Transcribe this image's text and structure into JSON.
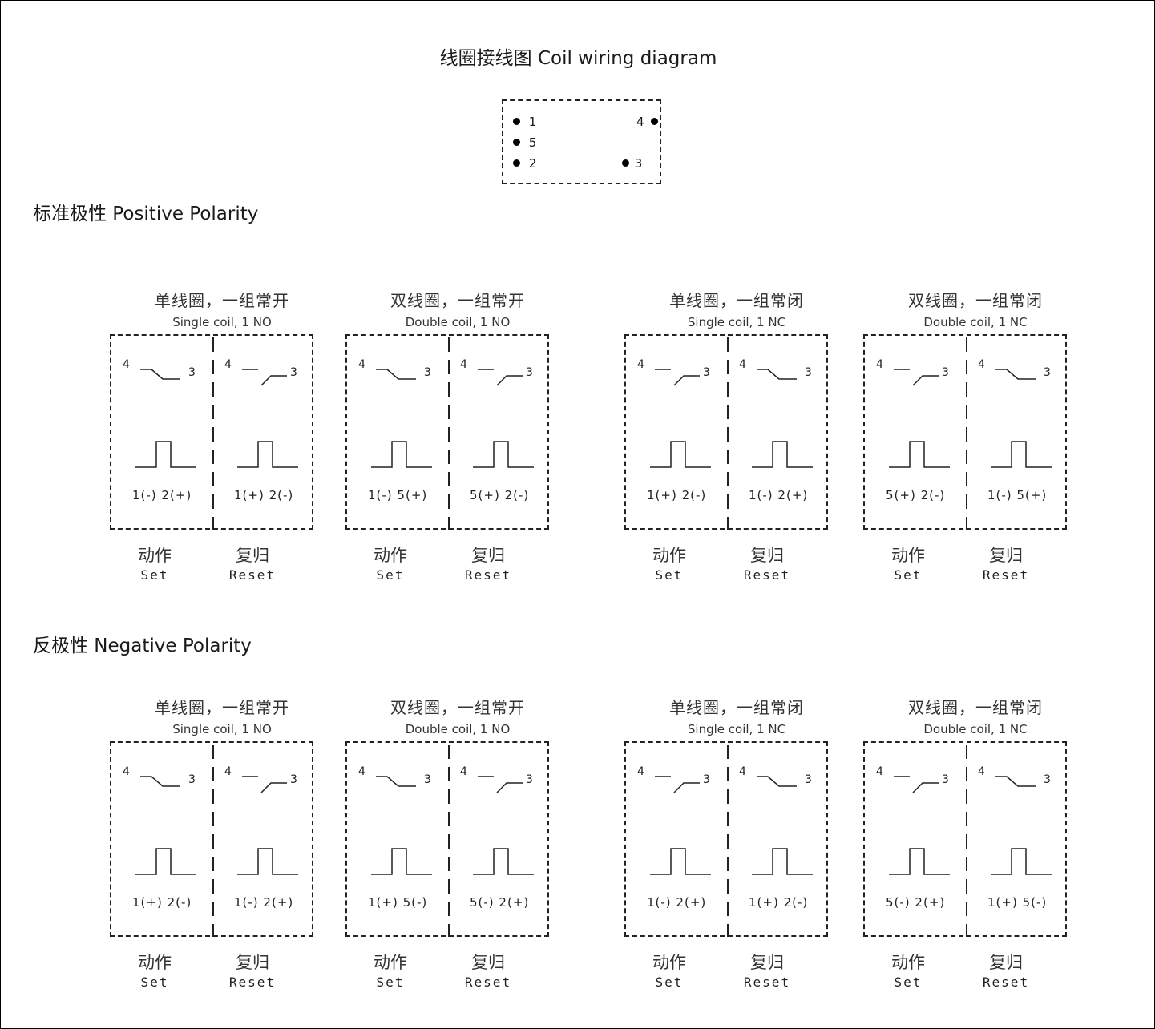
{
  "title": "线圈接线图 Coil wiring diagram",
  "pin_layout": [
    {
      "pin": "1"
    },
    {
      "pin": "5"
    },
    {
      "pin": "2"
    },
    {
      "pin": "4"
    },
    {
      "pin": "3"
    }
  ],
  "sections": [
    {
      "title": "标准极性 Positive Polarity",
      "groups": [
        {
          "cn": "单线圈，一组常开",
          "en": "Single coil, 1 NO",
          "set": {
            "contact": "open",
            "coil": "1(-)  2(+)",
            "pin_left": "4",
            "pin_right": "3"
          },
          "reset": {
            "contact": "closed",
            "coil": "1(+)  2(-)",
            "pin_left": "4",
            "pin_right": "3"
          }
        },
        {
          "cn": "双线圈，一组常开",
          "en": "Double coil, 1 NO",
          "set": {
            "contact": "open",
            "coil": "1(-)  5(+)",
            "pin_left": "4",
            "pin_right": "3"
          },
          "reset": {
            "contact": "closed",
            "coil": "5(+)  2(-)",
            "pin_left": "4",
            "pin_right": "3"
          }
        },
        {
          "cn": "单线圈，一组常闭",
          "en": "Single coil, 1 NC",
          "set": {
            "contact": "closed",
            "coil": "1(+)  2(-)",
            "pin_left": "4",
            "pin_right": "3"
          },
          "reset": {
            "contact": "open",
            "coil": "1(-)  2(+)",
            "pin_left": "4",
            "pin_right": "3"
          }
        },
        {
          "cn": "双线圈，一组常闭",
          "en": "Double coil, 1 NC",
          "set": {
            "contact": "closed",
            "coil": "5(+)  2(-)",
            "pin_left": "4",
            "pin_right": "3"
          },
          "reset": {
            "contact": "open",
            "coil": "1(-)  5(+)",
            "pin_left": "4",
            "pin_right": "3"
          }
        }
      ]
    },
    {
      "title": "反极性 Negative Polarity",
      "groups": [
        {
          "cn": "单线圈，一组常开",
          "en": "Single coil, 1 NO",
          "set": {
            "contact": "open",
            "coil": "1(+)  2(-)",
            "pin_left": "4",
            "pin_right": "3"
          },
          "reset": {
            "contact": "closed",
            "coil": "1(-)  2(+)",
            "pin_left": "4",
            "pin_right": "3"
          }
        },
        {
          "cn": "双线圈，一组常开",
          "en": "Double coil, 1 NO",
          "set": {
            "contact": "open",
            "coil": "1(+)  5(-)",
            "pin_left": "4",
            "pin_right": "3"
          },
          "reset": {
            "contact": "closed",
            "coil": "5(-)  2(+)",
            "pin_left": "4",
            "pin_right": "3"
          }
        },
        {
          "cn": "单线圈，一组常闭",
          "en": "Single coil, 1 NC",
          "set": {
            "contact": "closed",
            "coil": "1(-)  2(+)",
            "pin_left": "4",
            "pin_right": "3"
          },
          "reset": {
            "contact": "open",
            "coil": "1(+)  2(-)",
            "pin_left": "4",
            "pin_right": "3"
          }
        },
        {
          "cn": "双线圈，一组常闭",
          "en": "Double coil, 1 NC",
          "set": {
            "contact": "closed",
            "coil": "5(-)  2(+)",
            "pin_left": "4",
            "pin_right": "3"
          },
          "reset": {
            "contact": "open",
            "coil": "1(+)  5(-)",
            "pin_left": "4",
            "pin_right": "3"
          }
        }
      ]
    }
  ],
  "labels": {
    "set_cn": "动作",
    "set_en": "Set",
    "reset_cn": "复归",
    "reset_en": "Reset"
  }
}
